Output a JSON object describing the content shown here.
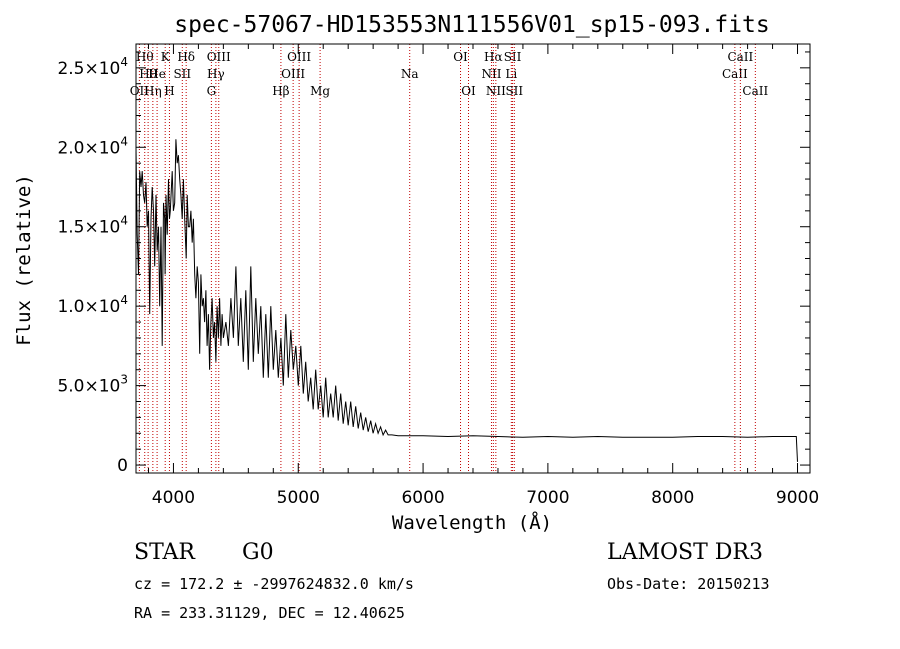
{
  "chart_data": {
    "type": "line",
    "title": "spec-57067-HD153553N111556V01_sp15-093.fits",
    "xlabel": "Wavelength (Å)",
    "ylabel": "Flux (relative)",
    "xlim": [
      3700,
      9100
    ],
    "ylim": [
      -500,
      26500
    ],
    "x_ticks": [
      {
        "value": 4000,
        "label": "4000"
      },
      {
        "value": 5000,
        "label": "5000"
      },
      {
        "value": 6000,
        "label": "6000"
      },
      {
        "value": 7000,
        "label": "7000"
      },
      {
        "value": 8000,
        "label": "8000"
      },
      {
        "value": 9000,
        "label": "9000"
      }
    ],
    "y_ticks": [
      {
        "value": 0,
        "mantissa": "0",
        "exponent": ""
      },
      {
        "value": 5000,
        "mantissa": "5.0×10",
        "exponent": "3"
      },
      {
        "value": 10000,
        "mantissa": "1.0×10",
        "exponent": "4"
      },
      {
        "value": 15000,
        "mantissa": "1.5×10",
        "exponent": "4"
      },
      {
        "value": 20000,
        "mantissa": "2.0×10",
        "exponent": "4"
      },
      {
        "value": 25000,
        "mantissa": "2.5×10",
        "exponent": "4"
      }
    ],
    "series": [
      {
        "name": "flux",
        "color": "#000000",
        "x": [
          3700,
          3710,
          3720,
          3730,
          3740,
          3750,
          3760,
          3770,
          3780,
          3790,
          3800,
          3810,
          3820,
          3830,
          3840,
          3850,
          3860,
          3870,
          3880,
          3890,
          3900,
          3910,
          3920,
          3930,
          3933,
          3940,
          3950,
          3960,
          3968,
          3975,
          3990,
          4000,
          4010,
          4020,
          4030,
          4040,
          4050,
          4060,
          4070,
          4080,
          4090,
          4102,
          4110,
          4120,
          4130,
          4140,
          4150,
          4160,
          4170,
          4180,
          4190,
          4200,
          4210,
          4220,
          4230,
          4240,
          4250,
          4260,
          4270,
          4280,
          4290,
          4300,
          4310,
          4320,
          4330,
          4340,
          4350,
          4360,
          4370,
          4380,
          4390,
          4400,
          4420,
          4440,
          4460,
          4480,
          4500,
          4520,
          4540,
          4560,
          4580,
          4600,
          4620,
          4640,
          4660,
          4680,
          4700,
          4720,
          4740,
          4760,
          4780,
          4800,
          4820,
          4840,
          4861,
          4880,
          4900,
          4920,
          4940,
          4960,
          4980,
          5000,
          5020,
          5040,
          5060,
          5080,
          5100,
          5120,
          5140,
          5160,
          5180,
          5200,
          5220,
          5240,
          5260,
          5280,
          5300,
          5320,
          5340,
          5360,
          5380,
          5400,
          5420,
          5440,
          5460,
          5480,
          5500,
          5520,
          5540,
          5560,
          5580,
          5600,
          5620,
          5640,
          5660,
          5680,
          5700,
          5720,
          5750,
          5800,
          5900,
          6000,
          6200,
          6400,
          6600,
          6800,
          7000,
          7200,
          7400,
          7600,
          7800,
          8000,
          8200,
          8400,
          8600,
          8800,
          8950,
          8990,
          9000
        ],
        "y": [
          20000,
          14500,
          12000,
          18500,
          17500,
          18500,
          17000,
          16500,
          17800,
          15000,
          16000,
          9500,
          15500,
          17500,
          16000,
          12500,
          17000,
          13500,
          15000,
          10000,
          15000,
          7500,
          16500,
          15500,
          12000,
          17000,
          14500,
          18000,
          15500,
          16000,
          18500,
          16000,
          16500,
          20500,
          19000,
          19500,
          18000,
          17000,
          15500,
          18000,
          15500,
          13000,
          17000,
          15000,
          15000,
          16000,
          14000,
          15500,
          12000,
          10500,
          12500,
          11500,
          7000,
          12000,
          10000,
          10500,
          9000,
          11000,
          7500,
          9500,
          6000,
          9000,
          10500,
          8000,
          9000,
          6500,
          10000,
          8000,
          10500,
          7500,
          9500,
          8000,
          9000,
          7500,
          10500,
          8000,
          12500,
          7500,
          10500,
          6500,
          11000,
          6000,
          12500,
          6500,
          10500,
          7000,
          10000,
          5500,
          9500,
          5500,
          10000,
          6000,
          8500,
          5500,
          8000,
          5000,
          9500,
          5500,
          8500,
          6000,
          7500,
          5000,
          7500,
          4500,
          6500,
          4000,
          5500,
          3500,
          6000,
          3500,
          5000,
          3000,
          5500,
          3000,
          4500,
          3000,
          5000,
          2800,
          4500,
          2600,
          4000,
          2500,
          4000,
          2400,
          3700,
          2300,
          3300,
          2200,
          3000,
          2100,
          2800,
          2000,
          2600,
          2000,
          2400,
          1900,
          2200,
          1900,
          1900,
          1850,
          1850,
          1850,
          1800,
          1850,
          1800,
          1750,
          1800,
          1750,
          1800,
          1750,
          1750,
          1750,
          1800,
          1800,
          1750,
          1800,
          1800,
          1800,
          200
        ]
      }
    ],
    "lines": [
      {
        "wl": 3727,
        "label": "OII",
        "row": 3
      },
      {
        "wl": 3770,
        "label": "Hθ",
        "row": 1
      },
      {
        "wl": 3797,
        "label": "Hθ",
        "row": 2
      },
      {
        "wl": 3835,
        "label": "Hη",
        "row": 3
      },
      {
        "wl": 3869,
        "label": "He",
        "row": 2
      },
      {
        "wl": 3934,
        "label": "K",
        "row": 1
      },
      {
        "wl": 3968,
        "label": "H",
        "row": 3
      },
      {
        "wl": 4071,
        "label": "SII",
        "row": 2
      },
      {
        "wl": 4102,
        "label": "Hδ",
        "row": 1
      },
      {
        "wl": 4304,
        "label": "G",
        "row": 3
      },
      {
        "wl": 4340,
        "label": "Hγ",
        "row": 2
      },
      {
        "wl": 4363,
        "label": "OIII",
        "row": 1
      },
      {
        "wl": 4861,
        "label": "Hβ",
        "row": 3
      },
      {
        "wl": 4959,
        "label": "OIII",
        "row": 2
      },
      {
        "wl": 5007,
        "label": "OIII",
        "row": 1
      },
      {
        "wl": 5175,
        "label": "Mg",
        "row": 3
      },
      {
        "wl": 5893,
        "label": "Na",
        "row": 2
      },
      {
        "wl": 6300,
        "label": "OI",
        "row": 1
      },
      {
        "wl": 6364,
        "label": "OI",
        "row": 3
      },
      {
        "wl": 6548,
        "label": "NII",
        "row": 2
      },
      {
        "wl": 6563,
        "label": "Hα",
        "row": 1
      },
      {
        "wl": 6583,
        "label": "NII",
        "row": 3
      },
      {
        "wl": 6707,
        "label": "Li",
        "row": 2
      },
      {
        "wl": 6717,
        "label": "SII",
        "row": 1
      },
      {
        "wl": 6731,
        "label": "SII",
        "row": 3
      },
      {
        "wl": 8498,
        "label": "CaII",
        "row": 2
      },
      {
        "wl": 8542,
        "label": "CaII",
        "row": 1
      },
      {
        "wl": 8662,
        "label": "CaII",
        "row": 3
      }
    ],
    "line_color": "#c00000"
  },
  "footer": {
    "object_class": "STAR",
    "subclass": "G0",
    "survey": "LAMOST DR3",
    "redshift": "cz = 172.2 ± -2997624832.0 km/s",
    "obs_date": "Obs-Date: 20150213",
    "coords": "RA = 233.31129, DEC =  12.40625"
  }
}
